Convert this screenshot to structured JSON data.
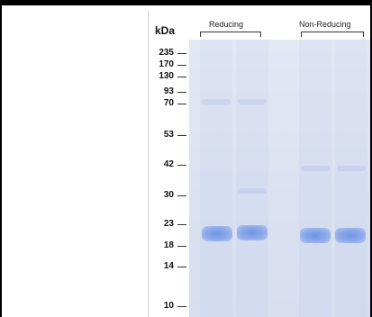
{
  "gel": {
    "unit_label": "kDa",
    "markers": [
      "235",
      "170",
      "130",
      "93",
      "70",
      "53",
      "42",
      "30",
      "23",
      "18",
      "14",
      "10"
    ],
    "groups": [
      "Reducing",
      "Non-Reducing"
    ],
    "band_color": "#6f95e4",
    "gel_color": "#dde4f2"
  }
}
